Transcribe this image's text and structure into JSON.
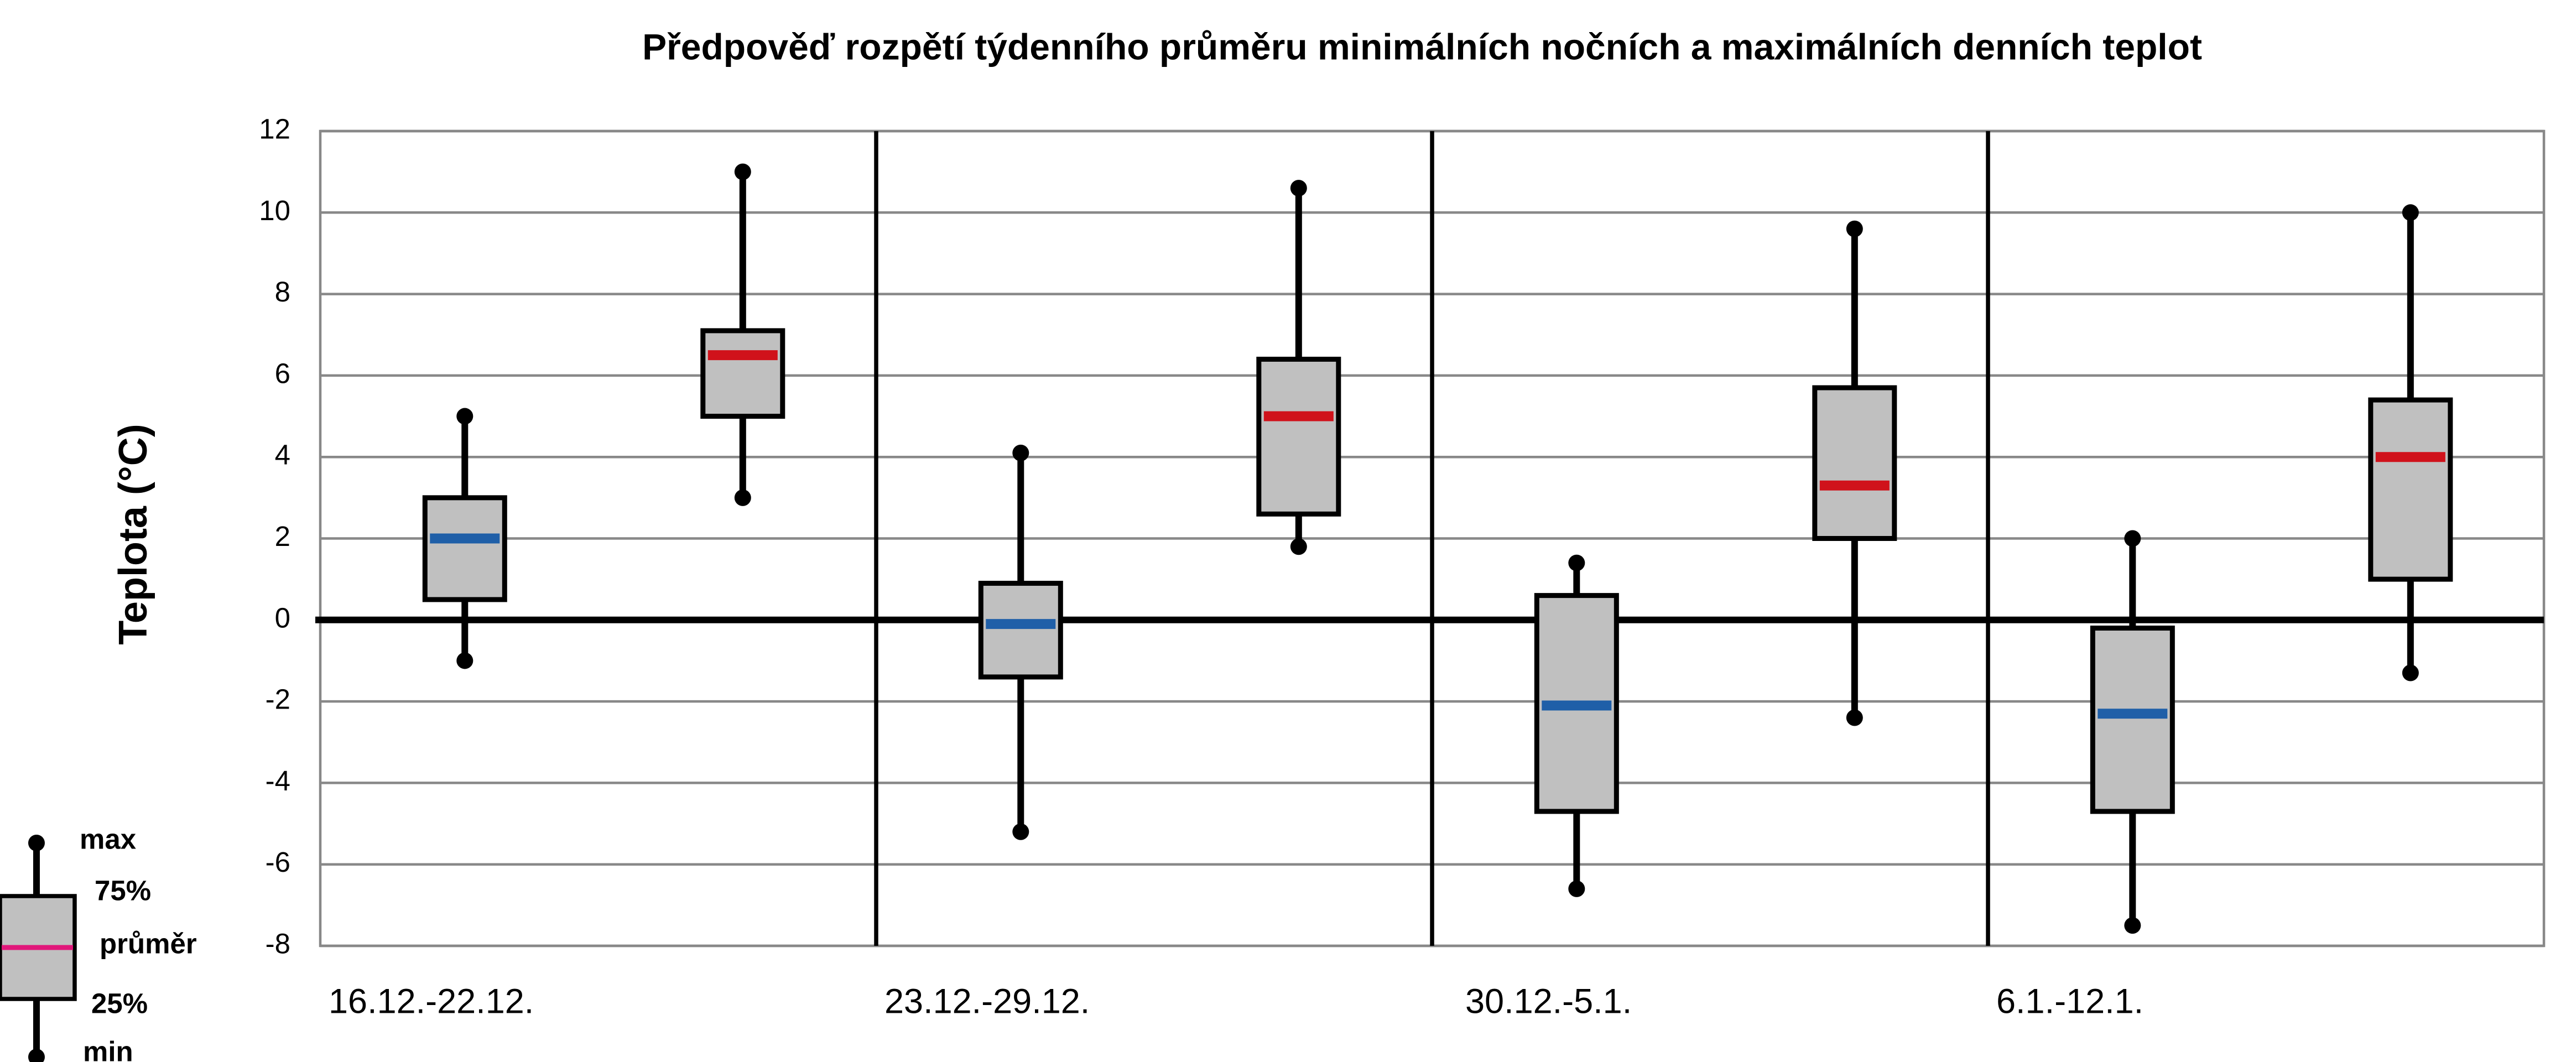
{
  "chart_data": {
    "type": "boxplot",
    "title": "Předpověď rozpětí týdenního průměru minimálních nočních a maximálních denních teplot",
    "y_label": "Teplota (°C)",
    "categories": [
      "16.12.-22.12.",
      "23.12.-29.12.",
      "30.12.-5.1.",
      "6.1.-12.1."
    ],
    "series": [
      {
        "color": "#1f5fa8",
        "min": [
          -1,
          -5.2,
          -6.6,
          -7.5
        ],
        "q1": [
          0.5,
          -1.4,
          -4.7,
          -4.7
        ],
        "mean": [
          2,
          -0.1,
          -2.1,
          -2.3
        ],
        "q3": [
          3,
          0.9,
          0.6,
          -0.2
        ],
        "max": [
          5,
          4.1,
          1.4,
          2
        ]
      },
      {
        "color": "#d0121b",
        "min": [
          3,
          1.8,
          -2.4,
          -1.3
        ],
        "q1": [
          5,
          2.6,
          2,
          1
        ],
        "mean": [
          6.5,
          5,
          3.3,
          4
        ],
        "q3": [
          7.1,
          6.4,
          5.7,
          5.4
        ],
        "max": [
          11,
          10.6,
          9.6,
          10
        ]
      }
    ],
    "box_color": "#c0c0c0",
    "ylim": [
      -8,
      12
    ],
    "yticks": [
      -8,
      -6,
      -4,
      -2,
      0,
      2,
      4,
      6,
      8,
      10,
      12
    ],
    "grid": true,
    "legend": {
      "max": "max",
      "q3": "75%",
      "mean": "průměr",
      "q1": "25%",
      "min": "min",
      "mean_color": "#e0177a"
    }
  }
}
